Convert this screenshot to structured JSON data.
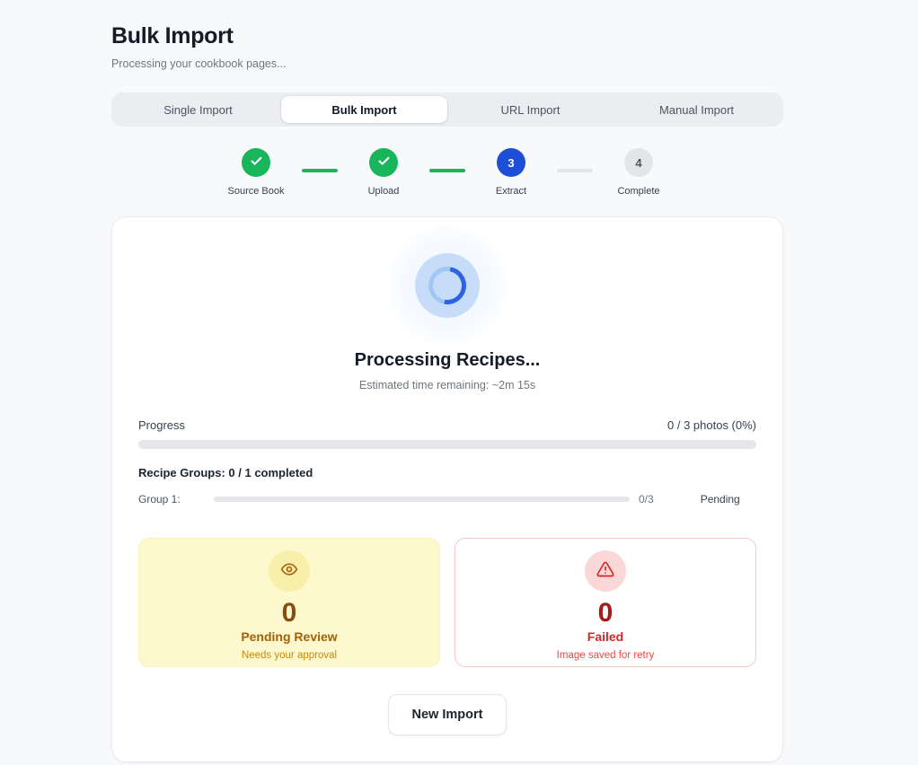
{
  "page": {
    "title": "Bulk Import",
    "subtitle": "Processing your cookbook pages..."
  },
  "tabs": [
    {
      "label": "Single Import",
      "state": "inactive"
    },
    {
      "label": "Bulk Import",
      "state": "active"
    },
    {
      "label": "URL Import",
      "state": "inactive"
    },
    {
      "label": "Manual Import",
      "state": "inactive"
    }
  ],
  "stepper": {
    "steps": [
      {
        "label": "Source Book",
        "state": "done"
      },
      {
        "label": "Upload",
        "state": "done"
      },
      {
        "label": "Extract",
        "state": "active",
        "number": "3"
      },
      {
        "label": "Complete",
        "state": "upcoming",
        "number": "4"
      }
    ],
    "connectors": [
      "done",
      "done",
      "upcoming"
    ]
  },
  "processing": {
    "heading": "Processing Recipes...",
    "eta": "Estimated time remaining: ~2m 15s"
  },
  "progress": {
    "label": "Progress",
    "value_text": "0 / 3 photos (0%)",
    "percent": 0
  },
  "groups": {
    "heading": "Recipe Groups: 0 / 1 completed",
    "rows": [
      {
        "label": "Group 1:",
        "count": "0/3",
        "status": "Pending",
        "percent": 0
      }
    ]
  },
  "stats": {
    "pending": {
      "icon": "eye-icon",
      "count": "0",
      "title": "Pending Review",
      "subtitle": "Needs your approval"
    },
    "failed": {
      "icon": "warning-triangle-icon",
      "count": "0",
      "title": "Failed",
      "subtitle": "Image saved for retry"
    }
  },
  "actions": {
    "new_import": "New Import"
  },
  "colors": {
    "accent_green": "#18b55b",
    "accent_blue": "#1d4ed8",
    "pending_amber": "#a16207",
    "failed_red": "#dc2626",
    "page_background": "#f8f9fa"
  }
}
